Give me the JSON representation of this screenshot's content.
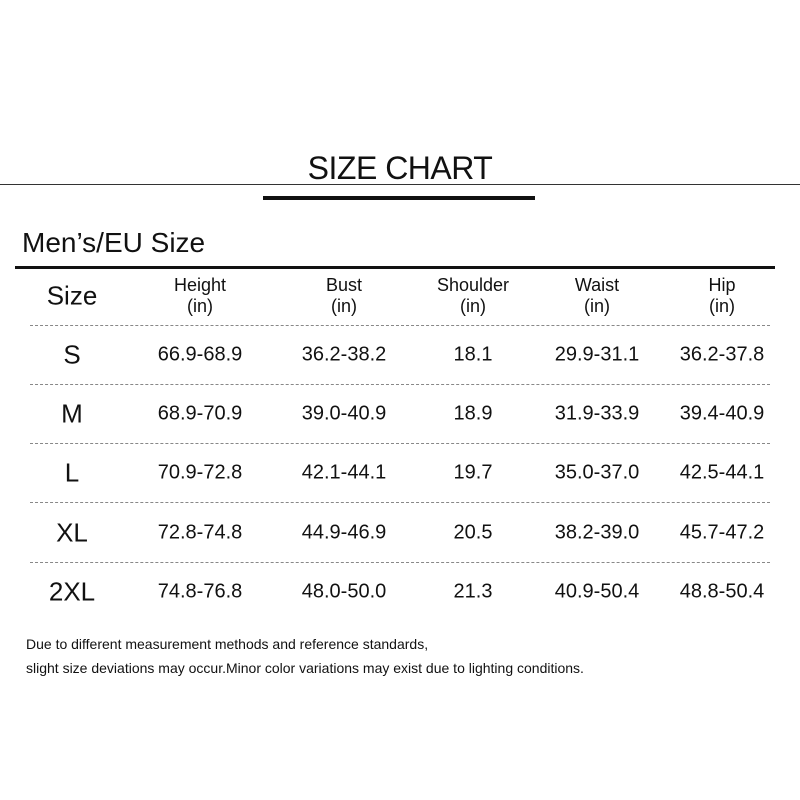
{
  "header": {
    "title": "SIZE CHART"
  },
  "table": {
    "title": "Men’s/EU Size",
    "columns": [
      {
        "name": "Size"
      },
      {
        "name": "Height",
        "unit": "(in)"
      },
      {
        "name": "Bust",
        "unit": "(in)"
      },
      {
        "name": "Shoulder",
        "unit": "(in)"
      },
      {
        "name": "Waist",
        "unit": "(in)"
      },
      {
        "name": "Hip",
        "unit": "(in)"
      }
    ],
    "rows": [
      [
        "S",
        "66.9-68.9",
        "36.2-38.2",
        "18.1",
        "29.9-31.1",
        "36.2-37.8"
      ],
      [
        "M",
        "68.9-70.9",
        "39.0-40.9",
        "18.9",
        "31.9-33.9",
        "39.4-40.9"
      ],
      [
        "L",
        "70.9-72.8",
        "42.1-44.1",
        "19.7",
        "35.0-37.0",
        "42.5-44.1"
      ],
      [
        "XL",
        "72.8-74.8",
        "44.9-46.9",
        "20.5",
        "38.2-39.0",
        "45.7-47.2"
      ],
      [
        "2XL",
        "74.8-76.8",
        "48.0-50.0",
        "21.3",
        "40.9-50.4",
        "48.8-50.4"
      ]
    ]
  },
  "note": {
    "lines": [
      "Due to different measurement methods and reference standards,",
      "slight size deviations may occur.Minor color variations may exist due to lighting conditions."
    ]
  }
}
